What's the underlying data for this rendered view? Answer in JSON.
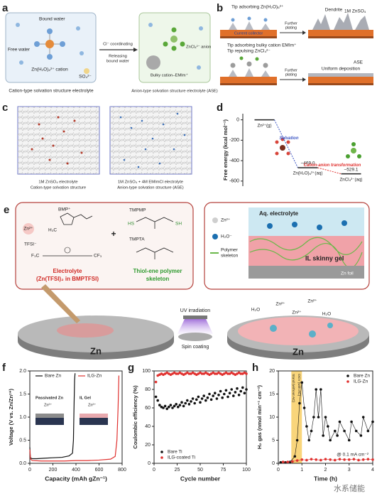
{
  "panel_labels": [
    "a",
    "b",
    "c",
    "d",
    "e",
    "f",
    "g",
    "h"
  ],
  "a": {
    "bound_water": "Bound water",
    "free_water": "Free water",
    "cation": "Zn(H₂O)₆²⁺ cation",
    "sulfate": "SO₄²⁻",
    "left_caption": "Cation-type solvation structure electrolyte",
    "arrow_top": "Cl⁻ coordinating",
    "arrow_bottom": [
      "Releasing",
      "bound water"
    ],
    "anion": "ZnCl₄²⁻ anion",
    "bulky": "Bulky cation–EMIm⁺",
    "right_caption": "Anion-type solvation structure electrolyte (ASE)"
  },
  "b": {
    "top_tip": "Tip adsorbing Zn(H₂O)₆²⁺",
    "top_electrolyte": "1M ZnSO₄",
    "dendrite": "Dendrite",
    "collector": "Current collector",
    "plating": [
      "Further",
      "plating"
    ],
    "bottom_tip": [
      "Tip adsorbing bulky cation EMIm⁺",
      "Tip repulsing ZnCl₄²⁻"
    ],
    "ase": "ASE",
    "uniform": "Uniform deposition"
  },
  "c": {
    "left": [
      "1M ZnSO₄ electrolyte",
      "Cation-type solvation structure"
    ],
    "right": [
      "1M ZnSO₄ + 4M EMImCl electrolyte",
      "Anion-type solvation structure (ASE)"
    ]
  },
  "e": {
    "zn": "Zn²⁺",
    "bmp": "BMP⁺",
    "tfsi": "TFSI⁻",
    "h3c": "H₃C",
    "f3c": "F₃C",
    "cf3": "CF₃",
    "electrolyte": [
      "Electrolyte",
      "(Zn(TFSI)₂ in BMPTFSI)"
    ],
    "plus": "+",
    "tmpmp": "TMPMP",
    "tmpta": "TMPTA",
    "hs": "HS",
    "sh": "SH",
    "thiol": [
      "Thiol-ene polymer",
      "skeleton"
    ],
    "aq": "Aq. electrolyte",
    "legend_zn": "Zn²⁺",
    "legend_h2o": "H₂O⁻",
    "legend_polymer": [
      "Polymer",
      "skeleton"
    ],
    "gel": "IL skinny gel",
    "foil": "Zn foil",
    "uv": "UV irradiation",
    "spin": "Spin coating",
    "disk_left": "Zn",
    "disk_right": "Zn",
    "ions": [
      "Zn²⁺",
      "Zn²⁺",
      "Zn²⁺",
      "H₂O",
      "H₂O"
    ]
  },
  "watermark": "水系储能",
  "chart_data": [
    {
      "type": "energy",
      "ylabel": "Free energy (kcal mol⁻¹)",
      "ylim": [
        -650,
        60
      ],
      "yticks": [
        0,
        -200,
        -400,
        -600
      ],
      "categories": [
        "Zn²⁺(g)",
        "Zn(H₂O)₆²⁺(aq)",
        "ZnCl₄²⁻(aq)"
      ],
      "values": [
        0,
        -469.0,
        -529.1
      ],
      "value_labels": [
        null,
        "−469.0",
        "−529.1"
      ],
      "transitions": [
        "Solvation",
        "Cation-anion transformation"
      ],
      "transition_colors": [
        "#3b55c4",
        "#e0312f"
      ],
      "color": "#222222"
    },
    {
      "type": "line",
      "xlabel": "Capacity (mAh gZn⁻¹)",
      "ylabel": "Voltage (V vs. Zn/Zn²⁺)",
      "xlim": [
        0,
        800
      ],
      "xticks": [
        0,
        200,
        400,
        600,
        800
      ],
      "ylim": [
        0,
        2
      ],
      "yticks": [
        {
          "value": 0,
          "label": "0.0"
        },
        {
          "value": 0.5,
          "label": "0.5"
        },
        {
          "value": 1,
          "label": "1.0"
        },
        {
          "value": 1.5,
          "label": "1.5"
        },
        {
          "value": 2,
          "label": "2.0"
        }
      ],
      "legend": "top",
      "annotations": [
        "Passivated Zn",
        "Zn²⁺",
        "IL Gel",
        "Zn²⁺"
      ],
      "series": [
        {
          "name": "Bare Zn",
          "color": "#111111",
          "x": [
            0,
            5,
            20,
            60,
            120,
            200,
            280,
            340,
            370,
            378,
            383,
            388,
            392
          ],
          "values": [
            0.35,
            0.12,
            0.1,
            0.1,
            0.11,
            0.12,
            0.13,
            0.16,
            0.22,
            0.5,
            1.2,
            1.8,
            1.95
          ]
        },
        {
          "name": "ILG-Zn",
          "color": "#e0312f",
          "x": [
            0,
            5,
            20,
            100,
            200,
            300,
            400,
            500,
            600,
            700,
            740,
            755,
            765,
            772
          ],
          "values": [
            0.3,
            0.1,
            0.06,
            0.05,
            0.05,
            0.05,
            0.06,
            0.06,
            0.07,
            0.09,
            0.15,
            0.5,
            1.2,
            1.9
          ]
        }
      ]
    },
    {
      "type": "scatter",
      "xlabel": "Cycle number",
      "ylabel": "Coulombic efficiency (%)",
      "xlim": [
        0,
        100
      ],
      "xticks": [
        0,
        25,
        50,
        75,
        100
      ],
      "ylim": [
        0,
        100
      ],
      "yticks": [
        0,
        20,
        40,
        60,
        80,
        100
      ],
      "legend": "lower left",
      "x": [
        2,
        4,
        6,
        8,
        10,
        12,
        14,
        16,
        18,
        20,
        22,
        24,
        26,
        28,
        30,
        32,
        34,
        36,
        38,
        40,
        42,
        44,
        46,
        48,
        50,
        52,
        54,
        56,
        58,
        60,
        62,
        64,
        66,
        68,
        70,
        72,
        74,
        76,
        78,
        80,
        82,
        84,
        86,
        88,
        90,
        92,
        94,
        96,
        98,
        100
      ],
      "series": [
        {
          "name": "Bare Ti",
          "color": "#111111",
          "values": [
            72,
            68,
            63,
            61,
            60,
            62,
            59,
            61,
            63,
            60,
            62,
            64,
            61,
            63,
            66,
            62,
            65,
            68,
            64,
            67,
            70,
            65,
            69,
            72,
            66,
            70,
            73,
            68,
            71,
            75,
            69,
            73,
            76,
            70,
            74,
            78,
            71,
            75,
            79,
            72,
            76,
            80,
            73,
            77,
            81,
            74,
            78,
            82,
            76,
            80
          ]
        },
        {
          "name": "ILG-coated Ti",
          "color": "#e0312f",
          "values": [
            88,
            95,
            96,
            97,
            96,
            97,
            98,
            97,
            96,
            97,
            98,
            97,
            97,
            98,
            97,
            96,
            97,
            98,
            97,
            97,
            98,
            97,
            96,
            97,
            98,
            97,
            97,
            98,
            97,
            96,
            97,
            98,
            97,
            97,
            98,
            97,
            96,
            97,
            98,
            97,
            97,
            98,
            97,
            96,
            97,
            98,
            97,
            97,
            98,
            97
          ]
        }
      ]
    },
    {
      "type": "scatter",
      "connect": true,
      "xlabel": "Time (h)",
      "ylabel": "H₂ gas (nmol min⁻¹ cm⁻²)",
      "xlim": [
        0,
        4
      ],
      "xticks": [
        0,
        1,
        2,
        3,
        4
      ],
      "ylim": [
        0,
        20
      ],
      "yticks": [
        0,
        5,
        10,
        15,
        20
      ],
      "legend": "upper right",
      "highlight": [
        0.55,
        1.0
      ],
      "highlight_color": "#f6c343",
      "highlight_labels": [
        "Stand (without AC)",
        "OCV (with AC)"
      ],
      "note": "@ 0.1 mA cm⁻²",
      "series": [
        {
          "name": "Bare Zn",
          "color": "#111111",
          "x": [
            0.1,
            0.3,
            0.5,
            0.7,
            0.8,
            0.9,
            1.0,
            1.1,
            1.2,
            1.3,
            1.4,
            1.5,
            1.6,
            1.7,
            1.8,
            1.9,
            2.0,
            2.1,
            2.2,
            2.4,
            2.5,
            2.6,
            2.8,
            3.0,
            3.1,
            3.3,
            3.5,
            3.6,
            3.8,
            4.0
          ],
          "values": [
            0.2,
            0.2,
            0.3,
            1.5,
            5,
            13,
            17.5,
            12,
            8,
            5,
            7,
            10,
            16,
            10,
            16,
            6,
            10,
            8,
            5,
            7,
            6,
            9,
            7,
            5,
            9,
            7,
            6,
            10,
            7,
            9
          ]
        },
        {
          "name": "ILG-Zn",
          "color": "#e0312f",
          "x": [
            0.2,
            0.4,
            0.6,
            0.8,
            1.0,
            1.2,
            1.4,
            1.6,
            1.8,
            2.0,
            2.2,
            2.4,
            2.6,
            2.8,
            3.0,
            3.2,
            3.4,
            3.6,
            3.8,
            4.0
          ],
          "values": [
            0.3,
            0.3,
            0.4,
            0.6,
            0.8,
            0.7,
            0.9,
            0.8,
            0.7,
            0.9,
            0.8,
            0.7,
            0.9,
            0.8,
            0.8,
            0.9,
            0.7,
            0.8,
            0.9,
            0.8
          ]
        }
      ]
    }
  ]
}
